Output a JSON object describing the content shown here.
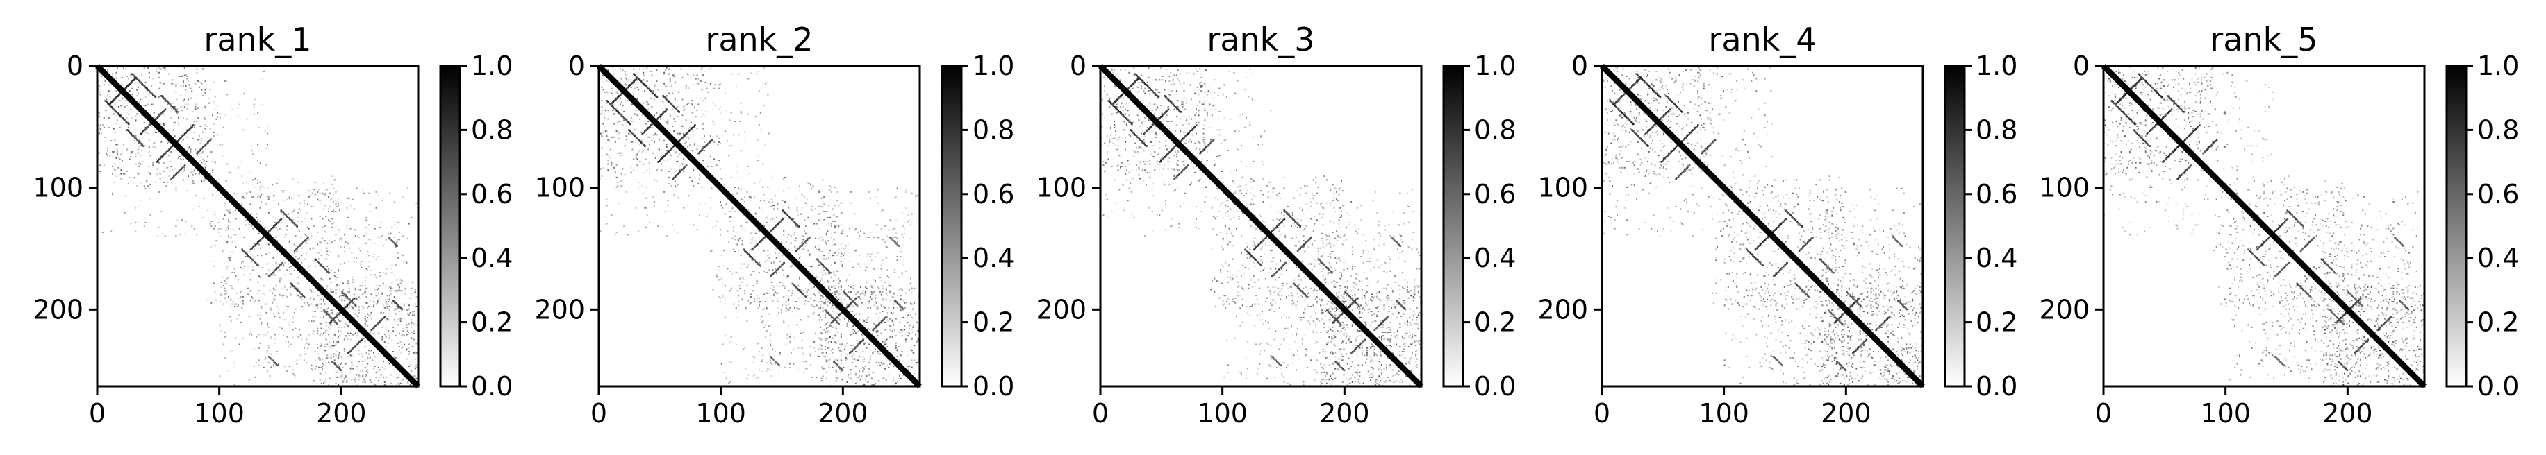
{
  "chart_data": [
    {
      "type": "heatmap",
      "title": "rank_1",
      "xlabel": "",
      "ylabel": "",
      "xlim": [
        0,
        263
      ],
      "ylim": [
        263,
        0
      ],
      "x_ticks": [
        0,
        100,
        200
      ],
      "y_ticks": [
        0,
        100,
        200
      ],
      "colorbar": {
        "ticks": [
          "0.0",
          "0.2",
          "0.4",
          "0.6",
          "0.8",
          "1.0"
        ],
        "range": [
          0,
          1
        ],
        "colormap": "gray_r"
      },
      "matrix_size": 263
    },
    {
      "type": "heatmap",
      "title": "rank_2",
      "xlabel": "",
      "ylabel": "",
      "xlim": [
        0,
        263
      ],
      "ylim": [
        263,
        0
      ],
      "x_ticks": [
        0,
        100,
        200
      ],
      "y_ticks": [
        0,
        100,
        200
      ],
      "colorbar": {
        "ticks": [
          "0.0",
          "0.2",
          "0.4",
          "0.6",
          "0.8",
          "1.0"
        ],
        "range": [
          0,
          1
        ],
        "colormap": "gray_r"
      },
      "matrix_size": 263
    },
    {
      "type": "heatmap",
      "title": "rank_3",
      "xlabel": "",
      "ylabel": "",
      "xlim": [
        0,
        263
      ],
      "ylim": [
        263,
        0
      ],
      "x_ticks": [
        0,
        100,
        200
      ],
      "y_ticks": [
        0,
        100,
        200
      ],
      "colorbar": {
        "ticks": [
          "0.0",
          "0.2",
          "0.4",
          "0.6",
          "0.8",
          "1.0"
        ],
        "range": [
          0,
          1
        ],
        "colormap": "gray_r"
      },
      "matrix_size": 263
    },
    {
      "type": "heatmap",
      "title": "rank_4",
      "xlabel": "",
      "ylabel": "",
      "xlim": [
        0,
        263
      ],
      "ylim": [
        263,
        0
      ],
      "x_ticks": [
        0,
        100,
        200
      ],
      "y_ticks": [
        0,
        100,
        200
      ],
      "colorbar": {
        "ticks": [
          "0.0",
          "0.2",
          "0.4",
          "0.6",
          "0.8",
          "1.0"
        ],
        "range": [
          0,
          1
        ],
        "colormap": "gray_r"
      },
      "matrix_size": 263
    },
    {
      "type": "heatmap",
      "title": "rank_5",
      "xlabel": "",
      "ylabel": "",
      "xlim": [
        0,
        263
      ],
      "ylim": [
        263,
        0
      ],
      "x_ticks": [
        0,
        100,
        200
      ],
      "y_ticks": [
        0,
        100,
        200
      ],
      "colorbar": {
        "ticks": [
          "0.0",
          "0.2",
          "0.4",
          "0.6",
          "0.8",
          "1.0"
        ],
        "range": [
          0,
          1
        ],
        "colormap": "gray_r"
      },
      "matrix_size": 263
    }
  ],
  "contact_features": {
    "diagonal": {
      "from": 0,
      "to": 263,
      "width": 3,
      "value": 1.0
    },
    "anti_diagonal_streaks": [
      {
        "i0": 10,
        "j0": 30,
        "len": 22,
        "value": 0.9
      },
      {
        "i0": 35,
        "j0": 55,
        "len": 18,
        "value": 0.85
      },
      {
        "i0": 48,
        "j0": 78,
        "len": 14,
        "value": 0.9
      },
      {
        "i0": 60,
        "j0": 92,
        "len": 12,
        "value": 0.8
      },
      {
        "i0": 125,
        "j0": 150,
        "len": 16,
        "value": 0.85
      },
      {
        "i0": 140,
        "j0": 172,
        "len": 12,
        "value": 0.8
      },
      {
        "i0": 190,
        "j0": 210,
        "len": 14,
        "value": 0.85
      },
      {
        "i0": 205,
        "j0": 235,
        "len": 12,
        "value": 0.8
      }
    ],
    "parallel_streaks": [
      {
        "i0": 28,
        "j0": 6,
        "len": 20,
        "value": 0.9
      },
      {
        "i0": 52,
        "j0": 24,
        "len": 14,
        "value": 0.85
      },
      {
        "i0": 150,
        "j0": 118,
        "len": 14,
        "value": 0.85
      },
      {
        "i0": 178,
        "j0": 158,
        "len": 12,
        "value": 0.8
      },
      {
        "i0": 200,
        "j0": 185,
        "len": 12,
        "value": 0.75
      },
      {
        "i0": 238,
        "j0": 140,
        "len": 8,
        "value": 0.7
      },
      {
        "i0": 242,
        "j0": 192,
        "len": 8,
        "value": 0.75
      }
    ],
    "sparse_regions": [
      {
        "i0": 0,
        "j0": 0,
        "i1": 90,
        "j1": 100,
        "count": 260,
        "max": 0.55
      },
      {
        "i0": 100,
        "j0": 90,
        "i1": 200,
        "j1": 200,
        "count": 240,
        "max": 0.5
      },
      {
        "i0": 180,
        "j0": 180,
        "i1": 263,
        "j1": 263,
        "count": 300,
        "max": 0.6
      },
      {
        "i0": 180,
        "j0": 130,
        "i1": 250,
        "j1": 200,
        "count": 120,
        "max": 0.45
      },
      {
        "i0": 0,
        "j0": 100,
        "i1": 110,
        "j1": 140,
        "count": 60,
        "max": 0.4
      },
      {
        "i0": 100,
        "j0": 180,
        "i1": 190,
        "j1": 263,
        "count": 110,
        "max": 0.45
      }
    ]
  }
}
